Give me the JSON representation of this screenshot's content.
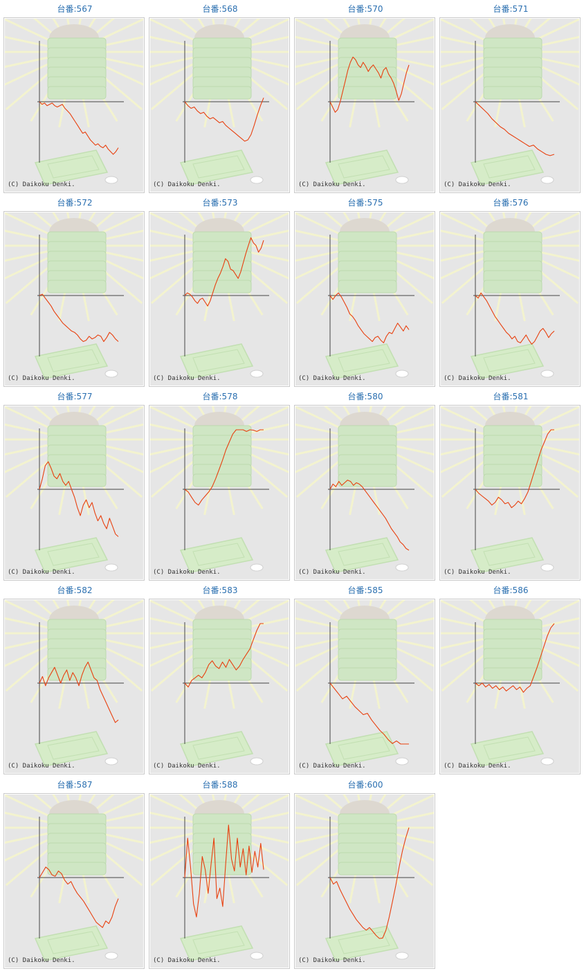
{
  "label_prefix": "台番:",
  "copyright": "(C) Daikoku Denki.",
  "colors": {
    "line": "#e8400f",
    "axis": "#444444",
    "title": "#2a6fb0",
    "background": "#e6e6e6"
  },
  "machines": [
    {
      "label": "台番:567",
      "chart_data": {
        "type": "line",
        "values": [
          0,
          -2,
          -1,
          -3,
          -2,
          -1,
          -3,
          -4,
          -3,
          -2,
          -5,
          -7,
          -9,
          -12,
          -15,
          -18,
          -21,
          -24,
          -23,
          -26,
          -29,
          -31,
          -33,
          -32,
          -34,
          -35,
          -33,
          -36,
          -38,
          -40,
          -38,
          -35
        ]
      }
    },
    {
      "label": "台番:568",
      "chart_data": {
        "type": "line",
        "values": [
          0,
          -3,
          -5,
          -4,
          -7,
          -9,
          -8,
          -11,
          -13,
          -12,
          -14,
          -16,
          -15,
          -18,
          -20,
          -22,
          -24,
          -26,
          -28,
          -30,
          -29,
          -25,
          -18,
          -10,
          -3,
          3
        ]
      }
    },
    {
      "label": "台番:570",
      "chart_data": {
        "type": "line",
        "values": [
          0,
          -4,
          -8,
          -6,
          0,
          8,
          16,
          24,
          30,
          34,
          32,
          28,
          26,
          30,
          27,
          23,
          26,
          28,
          25,
          22,
          18,
          24,
          26,
          21,
          18,
          14,
          8,
          1,
          6,
          14,
          22,
          28
        ]
      }
    },
    {
      "label": "台番:571",
      "chart_data": {
        "type": "line",
        "values": [
          0,
          -3,
          -6,
          -9,
          -13,
          -16,
          -19,
          -21,
          -24,
          -26,
          -28,
          -30,
          -32,
          -34,
          -33,
          -36,
          -38,
          -40,
          -41,
          -40
        ]
      }
    },
    {
      "label": "台番:572",
      "chart_data": {
        "type": "line",
        "values": [
          0,
          1,
          -2,
          -5,
          -8,
          -12,
          -15,
          -18,
          -21,
          -23,
          -25,
          -27,
          -28,
          -30,
          -33,
          -35,
          -34,
          -31,
          -33,
          -32,
          -30,
          -31,
          -35,
          -32,
          -28,
          -30,
          -33,
          -35
        ]
      }
    },
    {
      "label": "台番:573",
      "chart_data": {
        "type": "line",
        "values": [
          0,
          2,
          1,
          -1,
          -4,
          -6,
          -3,
          -2,
          -5,
          -8,
          -4,
          2,
          8,
          13,
          17,
          22,
          28,
          26,
          20,
          19,
          16,
          13,
          18,
          25,
          32,
          38,
          44,
          40,
          38,
          33,
          36,
          42
        ]
      }
    },
    {
      "label": "台番:575",
      "chart_data": {
        "type": "line",
        "values": [
          0,
          -3,
          0,
          2,
          -1,
          -5,
          -9,
          -14,
          -16,
          -19,
          -23,
          -26,
          -29,
          -31,
          -33,
          -35,
          -32,
          -31,
          -34,
          -36,
          -31,
          -28,
          -29,
          -25,
          -21,
          -24,
          -27,
          -23,
          -26
        ]
      }
    },
    {
      "label": "台番:576",
      "chart_data": {
        "type": "line",
        "values": [
          0,
          -2,
          2,
          -1,
          -4,
          -8,
          -12,
          -16,
          -19,
          -22,
          -25,
          -28,
          -30,
          -33,
          -31,
          -35,
          -36,
          -33,
          -30,
          -34,
          -37,
          -35,
          -31,
          -27,
          -25,
          -28,
          -32,
          -29,
          -27
        ]
      }
    },
    {
      "label": "台番:577",
      "chart_data": {
        "type": "line",
        "values": [
          0,
          8,
          18,
          21,
          16,
          10,
          8,
          12,
          6,
          3,
          6,
          0,
          -6,
          -14,
          -20,
          -12,
          -8,
          -14,
          -10,
          -18,
          -24,
          -20,
          -26,
          -30,
          -22,
          -28,
          -34,
          -36
        ]
      }
    },
    {
      "label": "台番:578",
      "chart_data": {
        "type": "line",
        "values": [
          0,
          -2,
          -6,
          -10,
          -12,
          -8,
          -5,
          -2,
          2,
          8,
          15,
          22,
          30,
          36,
          42,
          48,
          50,
          47,
          44,
          48,
          45,
          44,
          50,
          52
        ]
      }
    },
    {
      "label": "台番:580",
      "chart_data": {
        "type": "line",
        "values": [
          0,
          4,
          2,
          6,
          3,
          5,
          7,
          6,
          3,
          5,
          4,
          2,
          -1,
          -4,
          -7,
          -10,
          -13,
          -16,
          -19,
          -22,
          -26,
          -30,
          -33,
          -36,
          -40,
          -42,
          -45,
          -47
        ]
      }
    },
    {
      "label": "台番:581",
      "chart_data": {
        "type": "line",
        "values": [
          0,
          -3,
          -5,
          -7,
          -9,
          -12,
          -10,
          -6,
          -8,
          -11,
          -10,
          -14,
          -12,
          -9,
          -11,
          -7,
          -2,
          6,
          14,
          22,
          30,
          36,
          42,
          47,
          50
        ]
      }
    },
    {
      "label": "台番:582",
      "chart_data": {
        "type": "line",
        "values": [
          0,
          5,
          -2,
          4,
          8,
          12,
          6,
          0,
          6,
          10,
          2,
          8,
          4,
          -2,
          6,
          12,
          16,
          10,
          4,
          2,
          -5,
          -10,
          -15,
          -20,
          -25,
          -30,
          -28
        ]
      }
    },
    {
      "label": "台番:583",
      "chart_data": {
        "type": "line",
        "values": [
          0,
          -3,
          2,
          4,
          6,
          4,
          8,
          14,
          17,
          13,
          11,
          16,
          12,
          18,
          14,
          10,
          13,
          18,
          22,
          26,
          33,
          40,
          48,
          56
        ]
      }
    },
    {
      "label": "台番:585",
      "chart_data": {
        "type": "line",
        "values": [
          0,
          -4,
          -8,
          -12,
          -10,
          -14,
          -18,
          -21,
          -24,
          -23,
          -28,
          -32,
          -36,
          -39,
          -43,
          -46,
          -44,
          -48,
          -51,
          -50
        ]
      }
    },
    {
      "label": "台番:586",
      "chart_data": {
        "type": "line",
        "values": [
          0,
          -2,
          0,
          -3,
          -1,
          -4,
          -2,
          -5,
          -3,
          -6,
          -4,
          -2,
          -5,
          -3,
          -7,
          -4,
          -2,
          5,
          12,
          20,
          28,
          36,
          42,
          48
        ]
      }
    },
    {
      "label": "台番:587",
      "chart_data": {
        "type": "line",
        "values": [
          0,
          4,
          8,
          6,
          2,
          1,
          5,
          3,
          -2,
          -5,
          -3,
          -8,
          -12,
          -15,
          -18,
          -22,
          -26,
          -30,
          -34,
          -36,
          -38,
          -33,
          -35,
          -30,
          -22,
          -16
        ]
      }
    },
    {
      "label": "台番:588",
      "chart_data": {
        "type": "line",
        "values": [
          0,
          30,
          8,
          -20,
          -30,
          -12,
          16,
          6,
          -12,
          10,
          30,
          -16,
          -8,
          -22,
          10,
          40,
          14,
          5,
          30,
          8,
          22,
          2,
          24,
          4,
          20,
          8,
          26,
          6
        ]
      }
    },
    {
      "label": "台番:600",
      "chart_data": {
        "type": "line",
        "values": [
          0,
          -5,
          -3,
          -9,
          -14,
          -19,
          -24,
          -28,
          -32,
          -35,
          -38,
          -40,
          -38,
          -41,
          -44,
          -48,
          -46,
          -40,
          -30,
          -18,
          -6,
          8,
          20,
          30,
          38
        ]
      }
    }
  ]
}
